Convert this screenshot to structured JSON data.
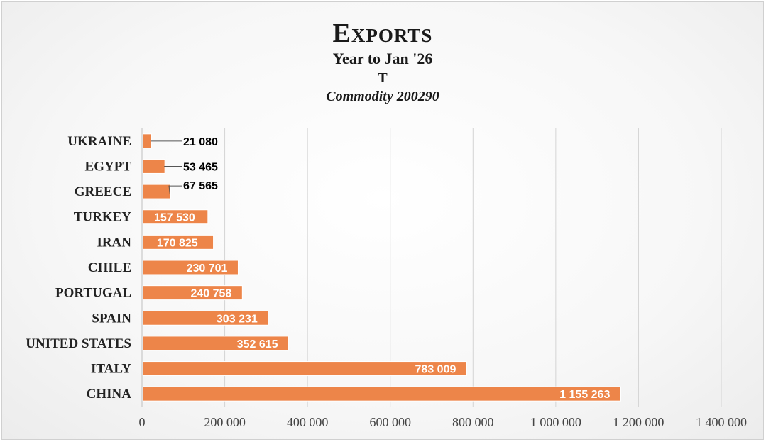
{
  "colors": {
    "bar": "#ED8549",
    "bar_edge": "#ffffff",
    "grid": "#d4d4d4",
    "axis": "#bfbfbf",
    "leader": "#555555"
  },
  "chart_data": {
    "type": "bar",
    "orientation": "horizontal",
    "title": "Exports",
    "subtitle_lines": [
      "Year to Jan '26",
      "T",
      "Commodity 200290"
    ],
    "categories": [
      "CHINA",
      "ITALY",
      "UNITED STATES",
      "SPAIN",
      "PORTUGAL",
      "CHILE",
      "IRAN",
      "TURKEY",
      "GREECE",
      "EGYPT",
      "UKRAINE"
    ],
    "values": [
      1155263,
      783009,
      352615,
      303231,
      240758,
      230701,
      170825,
      157530,
      67565,
      53465,
      21080
    ],
    "value_labels": [
      "1 155 263",
      "783 009",
      "352 615",
      "303 231",
      "240 758",
      "230 701",
      "170 825",
      "157 530",
      "67 565",
      "53 465",
      "21 080"
    ],
    "xlim": [
      0,
      1400000
    ],
    "x_ticks": [
      0,
      200000,
      400000,
      600000,
      800000,
      1000000,
      1200000,
      1400000
    ],
    "x_tick_labels": [
      "0",
      "200 000",
      "400 000",
      "600 000",
      "800 000",
      "1 000 000",
      "1 200 000",
      "1 400 000"
    ],
    "grid": true,
    "legend": "none",
    "xlabel": "",
    "ylabel": ""
  }
}
